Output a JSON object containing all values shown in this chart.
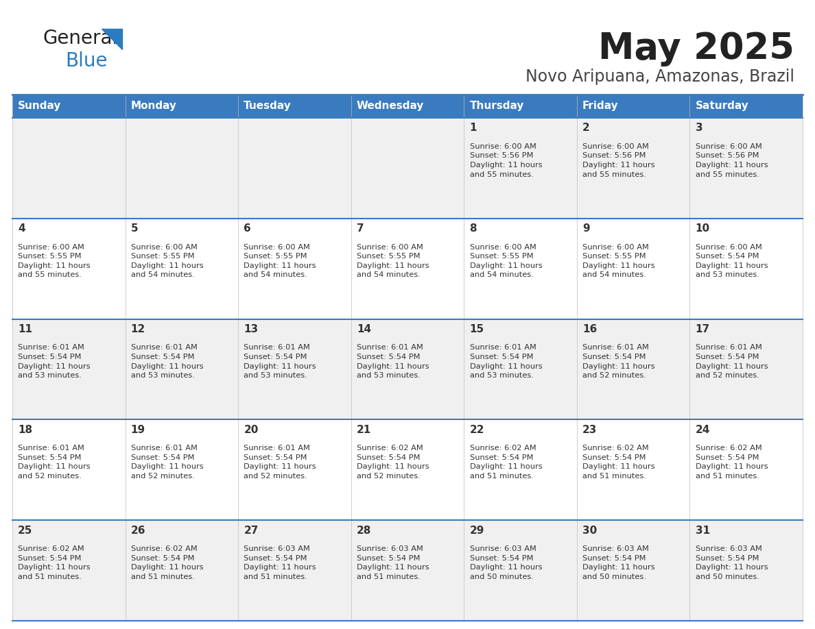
{
  "title": "May 2025",
  "subtitle": "Novo Aripuana, Amazonas, Brazil",
  "days_of_week": [
    "Sunday",
    "Monday",
    "Tuesday",
    "Wednesday",
    "Thursday",
    "Friday",
    "Saturday"
  ],
  "header_bg": "#3a7bbf",
  "header_text": "#ffffff",
  "row_bg_even": "#f0f0f0",
  "row_bg_odd": "#ffffff",
  "cell_border": "#3a7bbf",
  "day_num_color": "#333333",
  "text_color": "#333333",
  "title_color": "#222222",
  "subtitle_color": "#444444",
  "logo_general_color": "#222222",
  "logo_blue_color": "#2a7bbf",
  "calendar_data": [
    {
      "day": 1,
      "col": 4,
      "row": 0,
      "sunrise": "6:00 AM",
      "sunset": "5:56 PM",
      "daylight_hours": 11,
      "daylight_minutes": 55
    },
    {
      "day": 2,
      "col": 5,
      "row": 0,
      "sunrise": "6:00 AM",
      "sunset": "5:56 PM",
      "daylight_hours": 11,
      "daylight_minutes": 55
    },
    {
      "day": 3,
      "col": 6,
      "row": 0,
      "sunrise": "6:00 AM",
      "sunset": "5:56 PM",
      "daylight_hours": 11,
      "daylight_minutes": 55
    },
    {
      "day": 4,
      "col": 0,
      "row": 1,
      "sunrise": "6:00 AM",
      "sunset": "5:55 PM",
      "daylight_hours": 11,
      "daylight_minutes": 55
    },
    {
      "day": 5,
      "col": 1,
      "row": 1,
      "sunrise": "6:00 AM",
      "sunset": "5:55 PM",
      "daylight_hours": 11,
      "daylight_minutes": 54
    },
    {
      "day": 6,
      "col": 2,
      "row": 1,
      "sunrise": "6:00 AM",
      "sunset": "5:55 PM",
      "daylight_hours": 11,
      "daylight_minutes": 54
    },
    {
      "day": 7,
      "col": 3,
      "row": 1,
      "sunrise": "6:00 AM",
      "sunset": "5:55 PM",
      "daylight_hours": 11,
      "daylight_minutes": 54
    },
    {
      "day": 8,
      "col": 4,
      "row": 1,
      "sunrise": "6:00 AM",
      "sunset": "5:55 PM",
      "daylight_hours": 11,
      "daylight_minutes": 54
    },
    {
      "day": 9,
      "col": 5,
      "row": 1,
      "sunrise": "6:00 AM",
      "sunset": "5:55 PM",
      "daylight_hours": 11,
      "daylight_minutes": 54
    },
    {
      "day": 10,
      "col": 6,
      "row": 1,
      "sunrise": "6:00 AM",
      "sunset": "5:54 PM",
      "daylight_hours": 11,
      "daylight_minutes": 53
    },
    {
      "day": 11,
      "col": 0,
      "row": 2,
      "sunrise": "6:01 AM",
      "sunset": "5:54 PM",
      "daylight_hours": 11,
      "daylight_minutes": 53
    },
    {
      "day": 12,
      "col": 1,
      "row": 2,
      "sunrise": "6:01 AM",
      "sunset": "5:54 PM",
      "daylight_hours": 11,
      "daylight_minutes": 53
    },
    {
      "day": 13,
      "col": 2,
      "row": 2,
      "sunrise": "6:01 AM",
      "sunset": "5:54 PM",
      "daylight_hours": 11,
      "daylight_minutes": 53
    },
    {
      "day": 14,
      "col": 3,
      "row": 2,
      "sunrise": "6:01 AM",
      "sunset": "5:54 PM",
      "daylight_hours": 11,
      "daylight_minutes": 53
    },
    {
      "day": 15,
      "col": 4,
      "row": 2,
      "sunrise": "6:01 AM",
      "sunset": "5:54 PM",
      "daylight_hours": 11,
      "daylight_minutes": 53
    },
    {
      "day": 16,
      "col": 5,
      "row": 2,
      "sunrise": "6:01 AM",
      "sunset": "5:54 PM",
      "daylight_hours": 11,
      "daylight_minutes": 52
    },
    {
      "day": 17,
      "col": 6,
      "row": 2,
      "sunrise": "6:01 AM",
      "sunset": "5:54 PM",
      "daylight_hours": 11,
      "daylight_minutes": 52
    },
    {
      "day": 18,
      "col": 0,
      "row": 3,
      "sunrise": "6:01 AM",
      "sunset": "5:54 PM",
      "daylight_hours": 11,
      "daylight_minutes": 52
    },
    {
      "day": 19,
      "col": 1,
      "row": 3,
      "sunrise": "6:01 AM",
      "sunset": "5:54 PM",
      "daylight_hours": 11,
      "daylight_minutes": 52
    },
    {
      "day": 20,
      "col": 2,
      "row": 3,
      "sunrise": "6:01 AM",
      "sunset": "5:54 PM",
      "daylight_hours": 11,
      "daylight_minutes": 52
    },
    {
      "day": 21,
      "col": 3,
      "row": 3,
      "sunrise": "6:02 AM",
      "sunset": "5:54 PM",
      "daylight_hours": 11,
      "daylight_minutes": 52
    },
    {
      "day": 22,
      "col": 4,
      "row": 3,
      "sunrise": "6:02 AM",
      "sunset": "5:54 PM",
      "daylight_hours": 11,
      "daylight_minutes": 51
    },
    {
      "day": 23,
      "col": 5,
      "row": 3,
      "sunrise": "6:02 AM",
      "sunset": "5:54 PM",
      "daylight_hours": 11,
      "daylight_minutes": 51
    },
    {
      "day": 24,
      "col": 6,
      "row": 3,
      "sunrise": "6:02 AM",
      "sunset": "5:54 PM",
      "daylight_hours": 11,
      "daylight_minutes": 51
    },
    {
      "day": 25,
      "col": 0,
      "row": 4,
      "sunrise": "6:02 AM",
      "sunset": "5:54 PM",
      "daylight_hours": 11,
      "daylight_minutes": 51
    },
    {
      "day": 26,
      "col": 1,
      "row": 4,
      "sunrise": "6:02 AM",
      "sunset": "5:54 PM",
      "daylight_hours": 11,
      "daylight_minutes": 51
    },
    {
      "day": 27,
      "col": 2,
      "row": 4,
      "sunrise": "6:03 AM",
      "sunset": "5:54 PM",
      "daylight_hours": 11,
      "daylight_minutes": 51
    },
    {
      "day": 28,
      "col": 3,
      "row": 4,
      "sunrise": "6:03 AM",
      "sunset": "5:54 PM",
      "daylight_hours": 11,
      "daylight_minutes": 51
    },
    {
      "day": 29,
      "col": 4,
      "row": 4,
      "sunrise": "6:03 AM",
      "sunset": "5:54 PM",
      "daylight_hours": 11,
      "daylight_minutes": 50
    },
    {
      "day": 30,
      "col": 5,
      "row": 4,
      "sunrise": "6:03 AM",
      "sunset": "5:54 PM",
      "daylight_hours": 11,
      "daylight_minutes": 50
    },
    {
      "day": 31,
      "col": 6,
      "row": 4,
      "sunrise": "6:03 AM",
      "sunset": "5:54 PM",
      "daylight_hours": 11,
      "daylight_minutes": 50
    }
  ]
}
